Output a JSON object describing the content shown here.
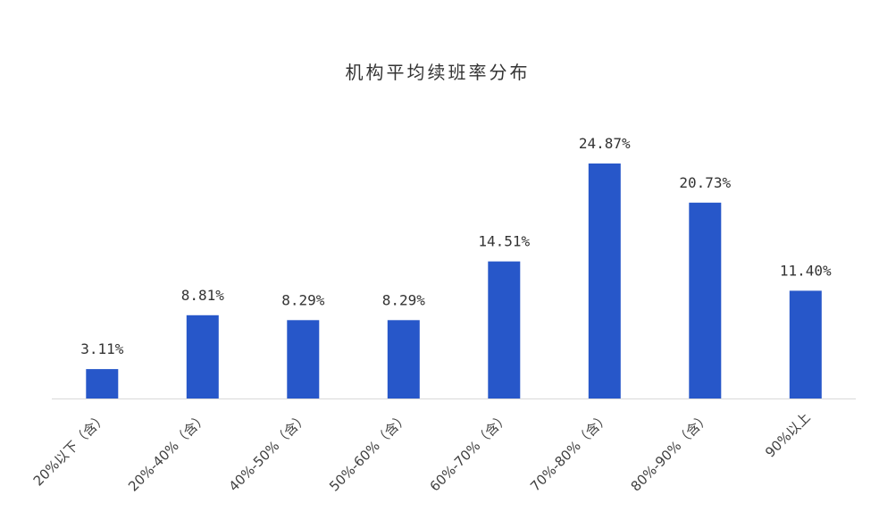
{
  "chart_data": {
    "type": "bar",
    "title": "机构平均续班率分布",
    "categories": [
      "20%以下（含）",
      "20%-40%（含）",
      "40%-50%（含）",
      "50%-60%（含）",
      "60%-70%（含）",
      "70%-80%（含）",
      "80%-90%（含）",
      "90%以上"
    ],
    "values": [
      3.11,
      8.81,
      8.29,
      8.29,
      14.51,
      24.87,
      20.73,
      11.4
    ],
    "value_labels": [
      "3.11%",
      "8.81%",
      "8.29%",
      "8.29%",
      "14.51%",
      "24.87%",
      "20.73%",
      "11.40%"
    ],
    "xlabel": "",
    "ylabel": "",
    "ylim": [
      0,
      25
    ],
    "grid": false,
    "legend": "none",
    "bar_color": "#2757C9",
    "axis_color": "#D9D9D9"
  }
}
